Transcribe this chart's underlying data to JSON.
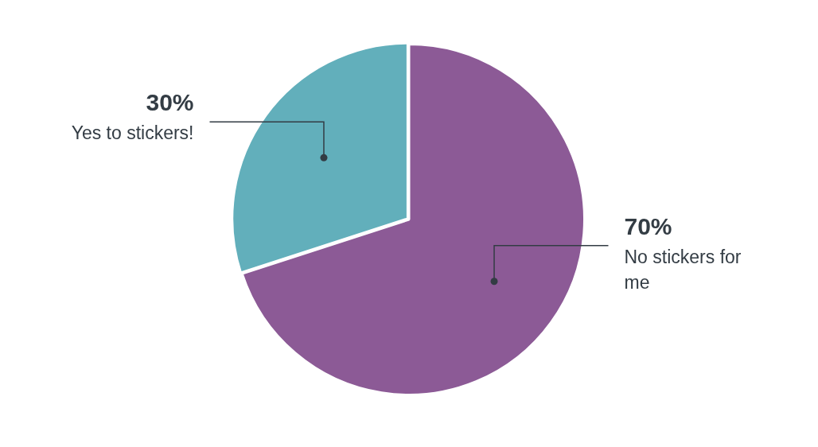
{
  "chart_data": {
    "type": "pie",
    "categories": [
      "No stickers for me",
      "Yes to stickers!"
    ],
    "values": [
      70,
      30
    ],
    "colors": [
      "#8c5a96",
      "#62afbb"
    ],
    "value_labels": [
      "70%",
      "30%"
    ],
    "legend": false
  }
}
